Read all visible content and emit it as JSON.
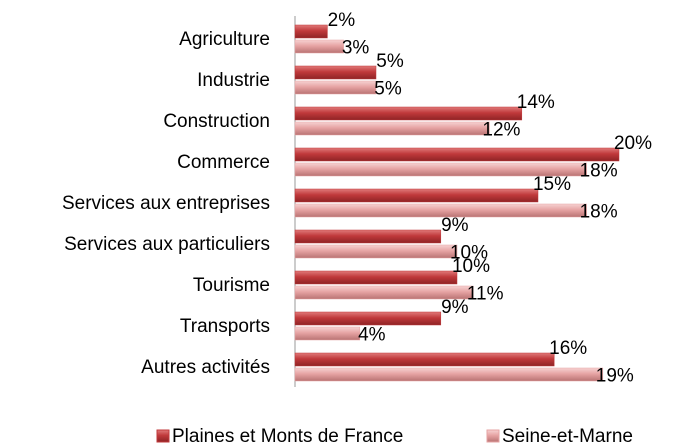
{
  "chart_data": {
    "type": "bar",
    "orientation": "horizontal",
    "categories": [
      "Agriculture",
      "Industrie",
      "Construction",
      "Commerce",
      "Services aux entreprises",
      "Services aux particuliers",
      "Tourisme",
      "Transports",
      "Autres activités"
    ],
    "series": [
      {
        "name": "Plaines et Monts de France",
        "color": "#c0393b",
        "values": [
          2,
          5,
          14,
          20,
          15,
          9,
          10,
          9,
          16
        ],
        "value_labels": [
          "2%",
          "5%",
          "14%",
          "20%",
          "15%",
          "9%",
          "10%",
          "9%",
          "16%"
        ]
      },
      {
        "name": "Seine-et-Marne",
        "color": "#e6a3a3",
        "values": [
          3,
          5,
          12,
          18,
          18,
          10,
          11,
          4,
          19
        ],
        "value_labels": [
          "3%",
          "5%",
          "12%",
          "18%",
          "18%",
          "10%",
          "11%",
          "4%",
          "19%"
        ]
      }
    ],
    "legend": "bottom"
  }
}
